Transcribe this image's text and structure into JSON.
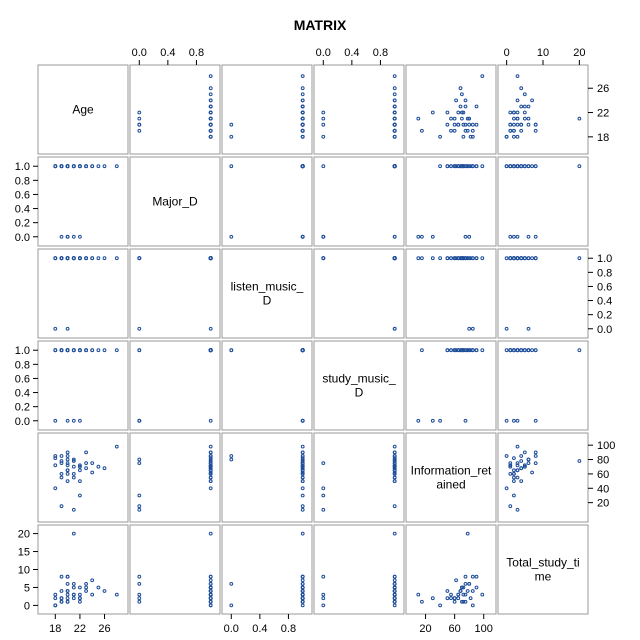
{
  "chart_data": {
    "type": "scatter",
    "subtype": "scatter-matrix",
    "title": "MATRIX",
    "variables": [
      "Age",
      "Major_D",
      "listen_music_D",
      "study_music_D",
      "Information_retained",
      "Total_study_time"
    ],
    "diagonal_labels": [
      [
        "Age"
      ],
      [
        "Major_D"
      ],
      [
        "listen_music_",
        "D"
      ],
      [
        "study_music_",
        "D"
      ],
      [
        "Information_ret",
        "ained"
      ],
      [
        "Total_study_ti",
        "me"
      ]
    ],
    "ranges": [
      [
        16,
        29
      ],
      [
        -0.06,
        1.06
      ],
      [
        -0.06,
        1.06
      ],
      [
        -0.06,
        1.06
      ],
      [
        0,
        110
      ],
      [
        -1,
        21
      ]
    ],
    "ticks": {
      "top": [
        {
          "var": 1,
          "values": [
            0.0,
            0.4,
            0.8
          ],
          "labels": [
            "0.0",
            "0.4",
            "0.8"
          ]
        },
        {
          "var": 3,
          "values": [
            0.0,
            0.4,
            0.8
          ],
          "labels": [
            "0.0",
            "0.4",
            "0.8"
          ]
        },
        {
          "var": 5,
          "values": [
            0,
            10,
            20
          ],
          "labels": [
            "0",
            "10",
            "20"
          ]
        }
      ],
      "bottom": [
        {
          "var": 0,
          "values": [
            18,
            22,
            26
          ],
          "labels": [
            "18",
            "22",
            "26"
          ]
        },
        {
          "var": 2,
          "values": [
            0.0,
            0.4,
            0.8
          ],
          "labels": [
            "0.0",
            "0.4",
            "0.8"
          ]
        },
        {
          "var": 4,
          "values": [
            20,
            60,
            100
          ],
          "labels": [
            "20",
            "60",
            "100"
          ]
        }
      ],
      "right": [
        {
          "var": 0,
          "values": [
            18,
            22,
            26
          ],
          "labels": [
            "18",
            "22",
            "26"
          ]
        },
        {
          "var": 2,
          "values": [
            0.0,
            0.2,
            0.4,
            0.6,
            0.8,
            1.0
          ],
          "labels": [
            "0.0",
            "0.2",
            "0.4",
            "0.6",
            "0.8",
            "1.0"
          ]
        },
        {
          "var": 4,
          "values": [
            20,
            40,
            60,
            80,
            100
          ],
          "labels": [
            "20",
            "40",
            "60",
            "80",
            "100"
          ]
        }
      ],
      "left": [
        {
          "var": 1,
          "values": [
            0.0,
            0.2,
            0.4,
            0.6,
            0.8,
            1.0
          ],
          "labels": [
            "0.0",
            "0.2",
            "0.4",
            "0.6",
            "0.8",
            "1.0"
          ]
        },
        {
          "var": 3,
          "values": [
            0.0,
            0.2,
            0.4,
            0.6,
            0.8,
            1.0
          ],
          "labels": [
            "0.0",
            "0.2",
            "0.4",
            "0.6",
            "0.8",
            "1.0"
          ]
        },
        {
          "var": 5,
          "values": [
            0,
            5,
            10,
            15,
            20
          ],
          "labels": [
            "0",
            "5",
            "10",
            "15",
            "20"
          ]
        }
      ]
    },
    "observations": [
      [
        18,
        1,
        1,
        1,
        72,
        3
      ],
      [
        19,
        1,
        1,
        1,
        60,
        2
      ],
      [
        20,
        1,
        1,
        1,
        85,
        4
      ],
      [
        21,
        1,
        1,
        1,
        70,
        5
      ],
      [
        22,
        1,
        1,
        1,
        50,
        2
      ],
      [
        20,
        1,
        1,
        1,
        65,
        3
      ],
      [
        19,
        1,
        1,
        1,
        75,
        1
      ],
      [
        18,
        1,
        1,
        0,
        40,
        0
      ],
      [
        21,
        1,
        1,
        1,
        80,
        6
      ],
      [
        23,
        1,
        1,
        1,
        68,
        4
      ],
      [
        20,
        1,
        1,
        1,
        90,
        8
      ],
      [
        22,
        1,
        1,
        1,
        72,
        5
      ],
      [
        19,
        1,
        1,
        1,
        55,
        2
      ],
      [
        24,
        1,
        1,
        1,
        75,
        3
      ],
      [
        20,
        1,
        1,
        1,
        60,
        1
      ],
      [
        21,
        1,
        1,
        1,
        78,
        20
      ],
      [
        18,
        1,
        1,
        1,
        82,
        2
      ],
      [
        25,
        1,
        1,
        1,
        70,
        5
      ],
      [
        22,
        1,
        1,
        1,
        65,
        3
      ],
      [
        20,
        1,
        1,
        1,
        50,
        4
      ],
      [
        19,
        1,
        1,
        1,
        85,
        8
      ],
      [
        21,
        1,
        1,
        1,
        60,
        2
      ],
      [
        23,
        1,
        1,
        1,
        75,
        6
      ],
      [
        26,
        1,
        1,
        1,
        68,
        4
      ],
      [
        28,
        1,
        1,
        1,
        98,
        3
      ],
      [
        20,
        0,
        0,
        1,
        80,
        6
      ],
      [
        19,
        0,
        1,
        1,
        15,
        1
      ],
      [
        22,
        0,
        1,
        0,
        30,
        2
      ],
      [
        21,
        0,
        1,
        0,
        10,
        3
      ],
      [
        20,
        0,
        1,
        0,
        75,
        8
      ],
      [
        18,
        1,
        0,
        1,
        85,
        0
      ],
      [
        22,
        1,
        1,
        1,
        70,
        1
      ],
      [
        21,
        1,
        1,
        1,
        55,
        3
      ],
      [
        20,
        1,
        1,
        1,
        65,
        2
      ],
      [
        19,
        1,
        1,
        1,
        78,
        4
      ],
      [
        24,
        1,
        1,
        1,
        62,
        7
      ],
      [
        23,
        1,
        1,
        1,
        90,
        5
      ],
      [
        20,
        1,
        1,
        1,
        72,
        1
      ]
    ]
  }
}
